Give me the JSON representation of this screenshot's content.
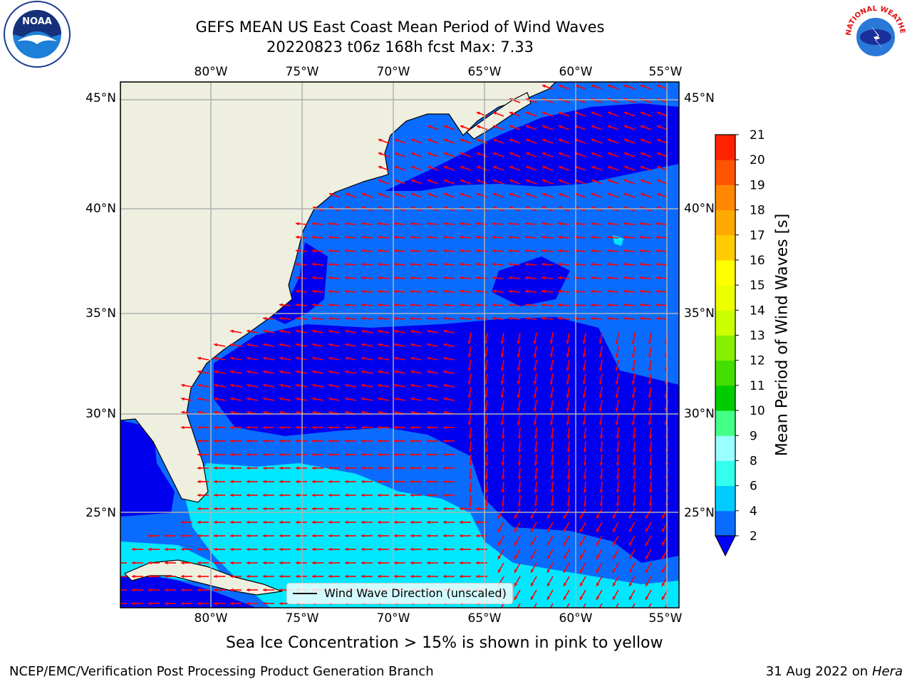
{
  "title": "GEFS MEAN US East Coast Mean Period of Wind Waves",
  "subtitle_line": "20220823 t06z 168h fcst    Max: 7.33",
  "bottom_note": "Sea Ice Concentration > 15% is shown in pink to yellow",
  "footer_left": "NCEP/EMC/Verification Post Processing Product Generation Branch",
  "footer_date": "31 Aug 2022 on",
  "footer_host": "Hera",
  "legend_label": "Wind Wave Direction (unscaled)",
  "colorbar": {
    "label": "Mean Period of Wind Waves [s]",
    "ticks": [
      "2",
      "4",
      "6",
      "8",
      "9",
      "10",
      "11",
      "12",
      "13",
      "14",
      "15",
      "16",
      "17",
      "18",
      "19",
      "20",
      "21"
    ],
    "colors": [
      "#0a6cff",
      "#00ccff",
      "#33ffee",
      "#99ffff",
      "#44ff88",
      "#00cc00",
      "#44dd00",
      "#88ee00",
      "#ccff00",
      "#eeff00",
      "#ffff00",
      "#ffcc00",
      "#ffaa00",
      "#ff8800",
      "#ff5500",
      "#ff2200",
      "#ff0000"
    ],
    "extend_color": "#0000ff"
  },
  "map": {
    "lon_labels": [
      "80°W",
      "75°W",
      "70°W",
      "65°W",
      "60°W",
      "55°W"
    ],
    "lat_labels": [
      "45°N",
      "40°N",
      "35°N",
      "30°N",
      "25°N"
    ],
    "land_color": "#efefdf",
    "arrow_color": "#ff0000"
  },
  "logos": {
    "noaa": "NOAA",
    "nws_text": "NATIONAL WEATHER SERVICE"
  }
}
